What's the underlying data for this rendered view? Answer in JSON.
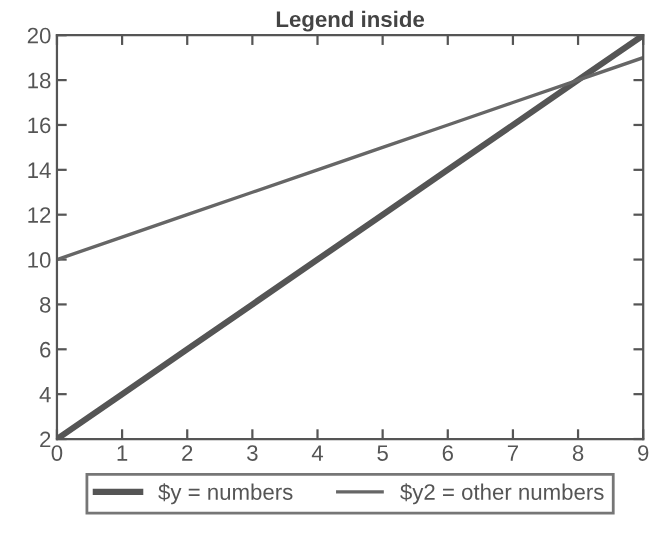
{
  "chart_data": {
    "type": "line",
    "title": "Legend inside",
    "x": [
      0,
      1,
      2,
      3,
      4,
      5,
      6,
      7,
      8,
      9
    ],
    "series": [
      {
        "name": "$y = numbers",
        "color": "#555555",
        "values": [
          2,
          4,
          6,
          8,
          10,
          12,
          14,
          16,
          18,
          20
        ]
      },
      {
        "name": "$y2 = other numbers",
        "color": "#666666",
        "values": [
          10,
          11,
          12,
          13,
          14,
          15,
          16,
          17,
          18,
          19
        ]
      }
    ],
    "xlim": [
      0,
      9
    ],
    "xticks": [
      0,
      1,
      2,
      3,
      4,
      5,
      6,
      7,
      8,
      9
    ],
    "ylim": [
      2,
      20
    ],
    "yticks": [
      2,
      4,
      6,
      8,
      10,
      12,
      14,
      16,
      18,
      20
    ],
    "grid": false,
    "legend": "bottom",
    "marker": "none",
    "line_style": "solid"
  }
}
